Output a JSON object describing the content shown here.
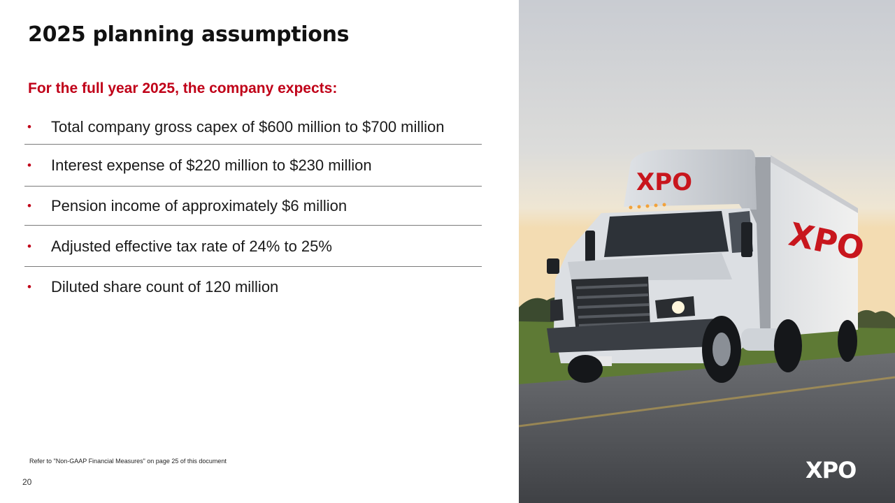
{
  "slide": {
    "title": "2025 planning assumptions",
    "subtitle": "For the full year 2025, the company expects:",
    "bullets": [
      "Total company gross capex of $600 million to $700 million",
      "Interest expense of $220 million to $230 million",
      "Pension income of approximately $6 million",
      "Adjusted effective tax rate of 24% to 25%",
      "Diluted share count of 120 million"
    ],
    "footnote": "Refer to \"Non-GAAP Financial Measures\" on page 25 of this document",
    "page_number": "20"
  },
  "photo": {
    "brand_logo": "XPO",
    "cab_logo": "XPO",
    "trailer_logo": "XPO"
  },
  "colors": {
    "accent_red": "#c00018",
    "divider": "#7a7a7a"
  }
}
